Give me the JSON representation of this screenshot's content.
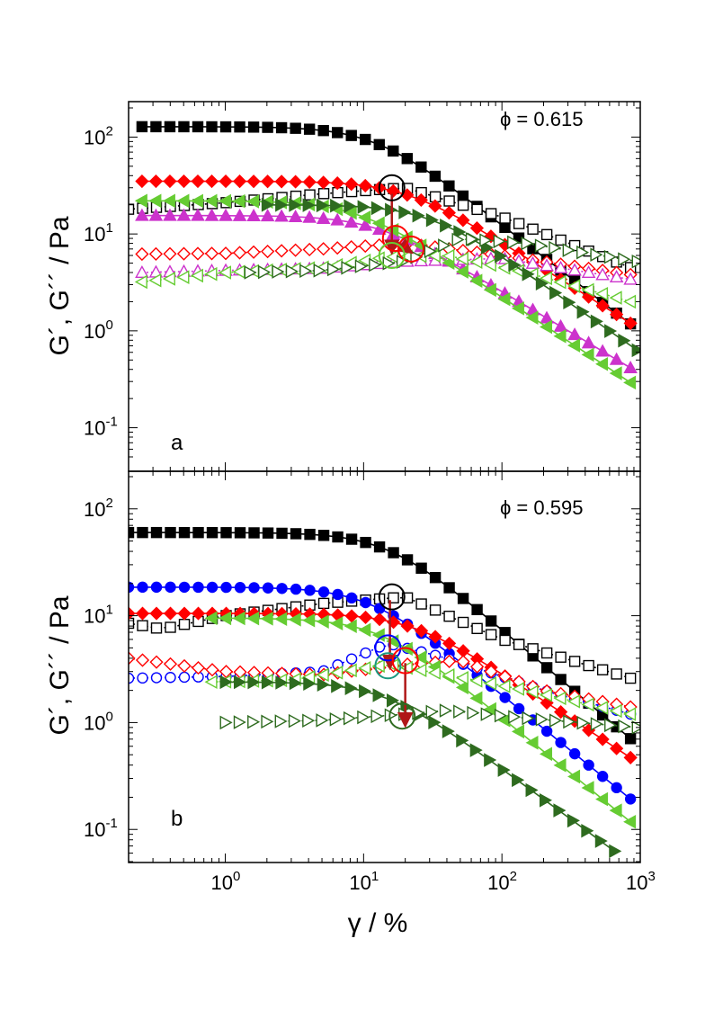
{
  "colors": {
    "black": "#000000",
    "red": "#ff0000",
    "magenta": "#cc33cc",
    "lightgreen": "#66cc33",
    "darkgreen": "#2e6b1f",
    "blue": "#0000ff",
    "teal": "#1a9980",
    "arrow": "#b01818"
  },
  "chart_data": [
    {
      "type": "scatter",
      "panel": "a",
      "annotation": "ϕ = 0.615",
      "xlabel": "γ / %",
      "ylabel": "G´, G´´ / Pa",
      "xscale": "log",
      "yscale": "log",
      "xlim": [
        0.2,
        1000
      ],
      "ylim": [
        0.05,
        200
      ],
      "xticks": [
        {
          "base": "10",
          "exp": "0"
        },
        {
          "base": "10",
          "exp": "1"
        },
        {
          "base": "10",
          "exp": "2"
        },
        {
          "base": "10",
          "exp": "3"
        }
      ],
      "yticks": [
        {
          "base": "10",
          "exp": "-1"
        },
        {
          "base": "10",
          "exp": "0"
        },
        {
          "base": "10",
          "exp": "1"
        },
        {
          "base": "10",
          "exp": "2"
        }
      ],
      "series": [
        {
          "name": "G' black",
          "marker": "square",
          "filled": true,
          "line": "solid",
          "color": "black",
          "plateau": 128,
          "x0": 12,
          "tail": -1.1,
          "sharp": 2,
          "xmin": 0.25,
          "xmax": 850
        },
        {
          "name": "G'' black",
          "marker": "square",
          "filled": false,
          "line": "dotted",
          "color": "black",
          "points": [
            [
              0.2,
              18
            ],
            [
              1,
              21
            ],
            [
              5,
              26
            ],
            [
              20,
              30
            ],
            [
              100,
              15
            ],
            [
              850,
              4.5
            ]
          ]
        },
        {
          "name": "G' red",
          "marker": "diamond",
          "filled": true,
          "line": "solid",
          "color": "red",
          "plateau": 35,
          "x0": 20,
          "tail": -0.9,
          "sharp": 2,
          "xmin": 0.25,
          "xmax": 850
        },
        {
          "name": "G'' red",
          "marker": "diamond",
          "filled": false,
          "line": "dotted",
          "color": "red",
          "points": [
            [
              0.25,
              6.2
            ],
            [
              1,
              6.3
            ],
            [
              5,
              7
            ],
            [
              20,
              8
            ],
            [
              100,
              6
            ],
            [
              850,
              3.8
            ]
          ]
        },
        {
          "name": "G' magenta",
          "marker": "triangle-up",
          "filled": true,
          "line": "solid",
          "color": "magenta",
          "plateau": 15.5,
          "x0": 12,
          "tail": -0.85,
          "sharp": 2,
          "xmin": 0.25,
          "xmax": 850
        },
        {
          "name": "G'' magenta",
          "marker": "triangle-up",
          "filled": false,
          "line": "dotted",
          "color": "magenta",
          "points": [
            [
              0.25,
              4
            ],
            [
              1,
              4.2
            ],
            [
              5,
              4.4
            ],
            [
              20,
              5.2
            ],
            [
              100,
              5.6
            ],
            [
              850,
              3.4
            ]
          ]
        },
        {
          "name": "G' lightgreen",
          "marker": "triangle-left",
          "filled": true,
          "line": "solid",
          "color": "lightgreen",
          "plateau": 22,
          "x0": 9,
          "tail": -0.95,
          "sharp": 2,
          "xmin": 0.25,
          "xmax": 850
        },
        {
          "name": "G'' lightgreen",
          "marker": "triangle-left",
          "filled": false,
          "line": "dotted",
          "color": "lightgreen",
          "points": [
            [
              0.25,
              3.2
            ],
            [
              1,
              4
            ],
            [
              5,
              4.5
            ],
            [
              15,
              5.8
            ],
            [
              40,
              6
            ],
            [
              150,
              4
            ],
            [
              850,
              2
            ]
          ]
        },
        {
          "name": "G' darkgreen",
          "marker": "triangle-right",
          "filled": true,
          "line": "solid",
          "color": "darkgreen",
          "plateau": 20,
          "x0": 30,
          "tail": -1.0,
          "sharp": 2,
          "xmin": 2,
          "xmax": 950
        },
        {
          "name": "G'' darkgreen",
          "marker": "triangle-right",
          "filled": false,
          "line": "dotted",
          "color": "darkgreen",
          "points": [
            [
              1.5,
              4
            ],
            [
              5,
              4.2
            ],
            [
              20,
              5.2
            ],
            [
              50,
              9
            ],
            [
              150,
              8
            ],
            [
              950,
              5.2
            ]
          ]
        }
      ],
      "crossover_marks": [
        {
          "x": 16,
          "y": 30,
          "color": "black"
        },
        {
          "x": 17,
          "y": 9,
          "color": "red"
        },
        {
          "x": 22,
          "y": 7,
          "color": "red"
        },
        {
          "x": 16,
          "y": 6,
          "color": "lightgreen"
        }
      ],
      "arrows": [
        {
          "from": [
            16,
            26
          ],
          "to": [
            16,
            6.5
          ]
        },
        {
          "from": [
            17,
            8.5
          ],
          "to": [
            22,
            6.5
          ]
        }
      ]
    },
    {
      "type": "scatter",
      "panel": "b",
      "annotation": "ϕ = 0.595",
      "xlabel": "γ / %",
      "ylabel": "G´, G´´  / Pa",
      "xscale": "log",
      "yscale": "log",
      "xlim": [
        0.2,
        1000
      ],
      "ylim": [
        0.05,
        200
      ],
      "xticks": [
        {
          "base": "10",
          "exp": "0"
        },
        {
          "base": "10",
          "exp": "1"
        },
        {
          "base": "10",
          "exp": "2"
        },
        {
          "base": "10",
          "exp": "3"
        }
      ],
      "yticks": [
        {
          "base": "10",
          "exp": "-1"
        },
        {
          "base": "10",
          "exp": "0"
        },
        {
          "base": "10",
          "exp": "1"
        },
        {
          "base": "10",
          "exp": "2"
        }
      ],
      "series": [
        {
          "name": "G' black",
          "marker": "square",
          "filled": true,
          "line": "solid",
          "color": "black",
          "plateau": 60,
          "x0": 15,
          "tail": -1.1,
          "sharp": 2,
          "xmin": 0.2,
          "xmax": 850
        },
        {
          "name": "G'' black",
          "marker": "square",
          "filled": false,
          "line": "dotted",
          "color": "black",
          "points": [
            [
              0.2,
              8.5
            ],
            [
              0.35,
              7.5
            ],
            [
              1,
              10
            ],
            [
              5,
              13
            ],
            [
              20,
              15
            ],
            [
              100,
              6
            ],
            [
              850,
              2.6
            ]
          ]
        },
        {
          "name": "G' blue",
          "marker": "circle",
          "filled": true,
          "line": "solid",
          "color": "blue",
          "plateau": 18.5,
          "x0": 11,
          "tail": -1.05,
          "sharp": 2,
          "xmin": 0.2,
          "xmax": 850
        },
        {
          "name": "G'' blue",
          "marker": "circle",
          "filled": false,
          "line": "dotted",
          "color": "blue",
          "points": [
            [
              0.2,
              2.6
            ],
            [
              1,
              2.7
            ],
            [
              5,
              3
            ],
            [
              15,
              5.5
            ],
            [
              40,
              4
            ],
            [
              200,
              2
            ],
            [
              850,
              1.2
            ]
          ]
        },
        {
          "name": "G' red",
          "marker": "diamond",
          "filled": true,
          "line": "solid",
          "color": "red",
          "plateau": 10.5,
          "x0": 22,
          "tail": -0.85,
          "sharp": 2,
          "xmin": 0.2,
          "xmax": 850
        },
        {
          "name": "G'' red",
          "marker": "diamond",
          "filled": false,
          "line": "dotted",
          "color": "red",
          "points": [
            [
              0.2,
              4
            ],
            [
              1,
              3
            ],
            [
              5,
              2.8
            ],
            [
              20,
              3.5
            ],
            [
              50,
              3.8
            ],
            [
              200,
              2
            ],
            [
              850,
              1.4
            ]
          ]
        },
        {
          "name": "G' lightgreen",
          "marker": "triangle-left",
          "filled": true,
          "line": "solid",
          "color": "lightgreen",
          "plateau": 9.5,
          "x0": 13,
          "tail": -1.05,
          "sharp": 2,
          "xmin": 0.8,
          "xmax": 850
        },
        {
          "name": "G'' lightgreen",
          "marker": "triangle-left",
          "filled": false,
          "line": "dotted",
          "color": "lightgreen",
          "points": [
            [
              0.8,
              2.4
            ],
            [
              3,
              2.5
            ],
            [
              15,
              3.5
            ],
            [
              40,
              2.8
            ],
            [
              150,
              2
            ],
            [
              850,
              1.2
            ]
          ]
        },
        {
          "name": "G' darkgreen",
          "marker": "triangle-right",
          "filled": true,
          "line": "solid",
          "color": "darkgreen",
          "plateau": 2.4,
          "x0": 14,
          "tail": -0.95,
          "sharp": 2,
          "xmin": 1,
          "xmax": 650
        },
        {
          "name": "G'' darkgreen",
          "marker": "triangle-right",
          "filled": false,
          "line": "dotted",
          "color": "darkgreen",
          "points": [
            [
              1,
              1
            ],
            [
              5,
              1.05
            ],
            [
              20,
              1.2
            ],
            [
              40,
              1.3
            ],
            [
              150,
              1.1
            ],
            [
              950,
              0.9
            ]
          ]
        }
      ],
      "crossover_marks": [
        {
          "x": 16,
          "y": 15,
          "color": "black"
        },
        {
          "x": 15,
          "y": 5,
          "color": "blue"
        },
        {
          "x": 15,
          "y": 3.4,
          "color": "teal"
        },
        {
          "x": 20,
          "y": 3.8,
          "color": "red"
        },
        {
          "x": 19,
          "y": 1.15,
          "color": "darkgreen"
        }
      ],
      "arrows": [
        {
          "from": [
            15.5,
            14
          ],
          "to": [
            15.5,
            3.3
          ]
        },
        {
          "from": [
            20,
            3.6
          ],
          "to": [
            20,
            0.95
          ]
        }
      ]
    }
  ]
}
